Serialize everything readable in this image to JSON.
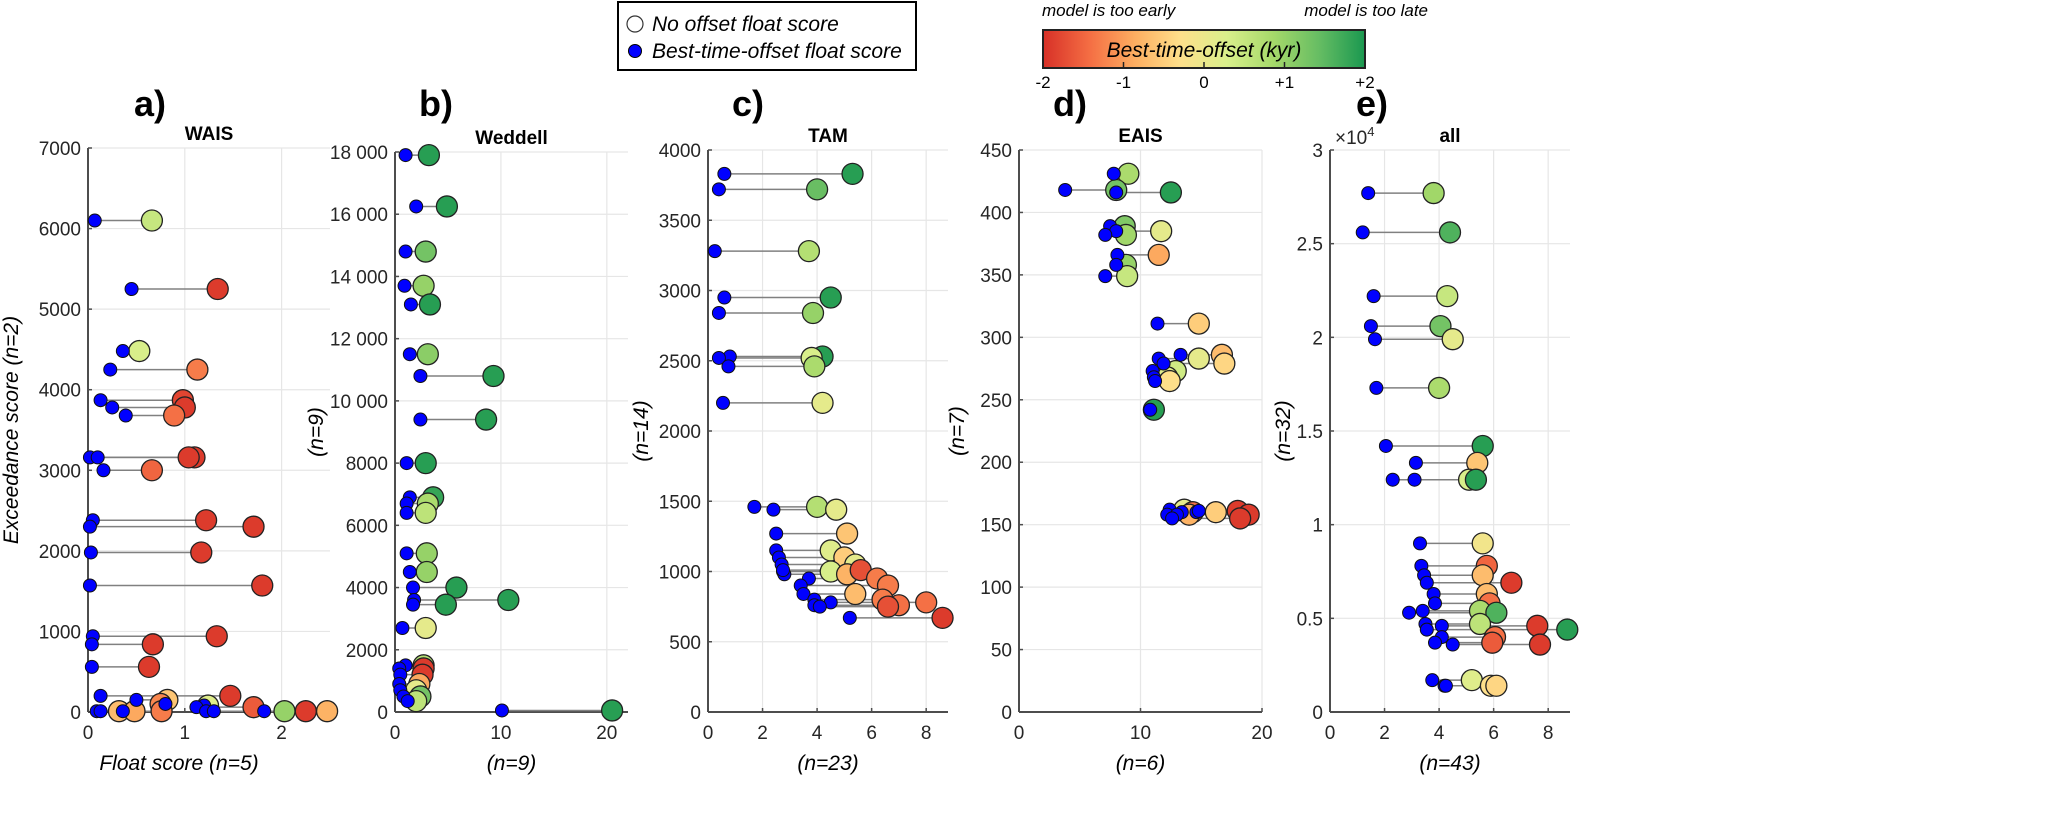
{
  "legend": {
    "items": [
      {
        "label": "No offset float score",
        "marker": "open-circle"
      },
      {
        "label": "Best-time-offset float score",
        "marker": "blue-dot"
      }
    ]
  },
  "colorbar": {
    "title": "Best-time-offset (kyr)",
    "left_note": "model is too early",
    "right_note": "model is too late",
    "ticks": [
      "-2",
      "-1",
      "0",
      "+1",
      "+2"
    ],
    "range": [
      -2,
      2
    ],
    "colors": [
      "#d73027",
      "#f46d43",
      "#fdae61",
      "#fee08b",
      "#d9ef8b",
      "#a6d96a",
      "#66bd63",
      "#1a9850"
    ]
  },
  "colors": {
    "best_offset_marker": "#0000ff",
    "connector": "#808080",
    "grid": "#e6e6e6",
    "axis": "#4d4d4d"
  },
  "chart_data": [
    {
      "type": "scatter",
      "panel": "a)",
      "title": "WAIS",
      "ylabel": "Exceedance score (n=2)",
      "xlabel": "Float score (n=5)",
      "xlim": [
        0,
        2.5
      ],
      "ylim": [
        0,
        7000
      ],
      "xticks": [
        "0",
        "1",
        "2"
      ],
      "xtick_values": [
        0,
        1,
        2
      ],
      "yticks": [
        "0",
        "1000",
        "2000",
        "3000",
        "4000",
        "5000",
        "6000",
        "7000"
      ],
      "ytick_values": [
        0,
        1000,
        2000,
        3000,
        4000,
        5000,
        6000,
        7000
      ],
      "y_multiplier": "",
      "points": [
        {
          "y": 6100,
          "best": 0.07,
          "none": 0.66,
          "offset": 0.5
        },
        {
          "y": 5250,
          "best": 0.45,
          "none": 1.34,
          "offset": -1.9
        },
        {
          "y": 4480,
          "best": 0.36,
          "none": 0.53,
          "offset": 0.3
        },
        {
          "y": 4250,
          "best": 0.23,
          "none": 1.13,
          "offset": -1.3
        },
        {
          "y": 3870,
          "best": 0.13,
          "none": 0.98,
          "offset": -1.8
        },
        {
          "y": 3780,
          "best": 0.25,
          "none": 1.0,
          "offset": -1.9
        },
        {
          "y": 3680,
          "best": 0.39,
          "none": 0.89,
          "offset": -1.4
        },
        {
          "y": 3160,
          "best": 0.02,
          "none": 1.1,
          "offset": -1.9
        },
        {
          "y": 3160,
          "best": 0.1,
          "none": 1.04,
          "offset": -1.9
        },
        {
          "y": 3000,
          "best": 0.16,
          "none": 0.66,
          "offset": -1.5
        },
        {
          "y": 2380,
          "best": 0.05,
          "none": 1.22,
          "offset": -1.9
        },
        {
          "y": 2300,
          "best": 0.02,
          "none": 1.71,
          "offset": -1.9
        },
        {
          "y": 1980,
          "best": 0.03,
          "none": 1.17,
          "offset": -1.9
        },
        {
          "y": 1570,
          "best": 0.02,
          "none": 1.8,
          "offset": -1.9
        },
        {
          "y": 940,
          "best": 0.05,
          "none": 1.33,
          "offset": -1.9
        },
        {
          "y": 840,
          "best": 0.04,
          "none": 0.67,
          "offset": -1.9
        },
        {
          "y": 560,
          "best": 0.04,
          "none": 0.63,
          "offset": -1.9
        },
        {
          "y": 200,
          "best": 0.13,
          "none": 1.47,
          "offset": -1.9
        },
        {
          "y": 150,
          "best": 0.5,
          "none": 0.82,
          "offset": -0.6
        },
        {
          "y": 80,
          "best": 1.2,
          "none": 1.24,
          "offset": 0.2
        },
        {
          "y": 100,
          "best": 0.8,
          "none": 0.75,
          "offset": -1.2
        },
        {
          "y": 60,
          "best": 1.12,
          "none": 1.71,
          "offset": -1.6
        },
        {
          "y": 10,
          "best": 0.09,
          "none": 0.32,
          "offset": -0.7
        },
        {
          "y": 10,
          "best": 0.13,
          "none": 0.48,
          "offset": -0.9
        },
        {
          "y": 10,
          "best": 0.36,
          "none": 0.76,
          "offset": -1.3
        },
        {
          "y": 10,
          "best": 1.22,
          "none": 2.03,
          "offset": 1.0
        },
        {
          "y": 10,
          "best": 1.3,
          "none": 2.25,
          "offset": -1.9
        },
        {
          "y": 10,
          "best": 1.82,
          "none": 2.47,
          "offset": -0.8
        }
      ]
    },
    {
      "type": "scatter",
      "panel": "b)",
      "title": "Weddell",
      "ylabel": "(n=9)",
      "xlabel": "(n=9)",
      "xlim": [
        0,
        22
      ],
      "ylim": [
        0,
        18000
      ],
      "xticks": [
        "0",
        "10",
        "20"
      ],
      "xtick_values": [
        0,
        10,
        20
      ],
      "yticks": [
        "0",
        "2000",
        "4000",
        "6000",
        "8000",
        "10 000",
        "12 000",
        "14 000",
        "16 000",
        "18 000"
      ],
      "ytick_values": [
        0,
        2000,
        4000,
        6000,
        8000,
        10000,
        12000,
        14000,
        16000,
        18000
      ],
      "y_multiplier": "",
      "points": [
        {
          "y": 17900,
          "best": 1.0,
          "none": 3.2,
          "offset": 1.9
        },
        {
          "y": 16250,
          "best": 2.0,
          "none": 4.9,
          "offset": 1.9
        },
        {
          "y": 14800,
          "best": 1.0,
          "none": 2.9,
          "offset": 1.3
        },
        {
          "y": 13700,
          "best": 0.9,
          "none": 2.7,
          "offset": 1.0
        },
        {
          "y": 13100,
          "best": 1.5,
          "none": 3.3,
          "offset": 1.9
        },
        {
          "y": 11500,
          "best": 1.4,
          "none": 3.1,
          "offset": 1.1
        },
        {
          "y": 10800,
          "best": 2.4,
          "none": 9.3,
          "offset": 1.9
        },
        {
          "y": 9400,
          "best": 2.4,
          "none": 8.6,
          "offset": 1.9
        },
        {
          "y": 8000,
          "best": 1.1,
          "none": 2.9,
          "offset": 1.9
        },
        {
          "y": 6900,
          "best": 1.4,
          "none": 3.6,
          "offset": 1.8
        },
        {
          "y": 6700,
          "best": 1.1,
          "none": 3.1,
          "offset": 0.8
        },
        {
          "y": 6400,
          "best": 1.1,
          "none": 2.9,
          "offset": 0.6
        },
        {
          "y": 5100,
          "best": 1.1,
          "none": 3.0,
          "offset": 1.0
        },
        {
          "y": 4500,
          "best": 1.4,
          "none": 3.0,
          "offset": 1.0
        },
        {
          "y": 4000,
          "best": 1.7,
          "none": 5.8,
          "offset": 1.9
        },
        {
          "y": 3600,
          "best": 1.8,
          "none": 10.7,
          "offset": 1.9
        },
        {
          "y": 3450,
          "best": 1.7,
          "none": 4.8,
          "offset": 1.9
        },
        {
          "y": 2700,
          "best": 0.7,
          "none": 2.9,
          "offset": 0.1
        },
        {
          "y": 1500,
          "best": 1.0,
          "none": 2.7,
          "offset": 0.7
        },
        {
          "y": 1400,
          "best": 0.4,
          "none": 2.7,
          "offset": -1.9
        },
        {
          "y": 1200,
          "best": 0.5,
          "none": 2.6,
          "offset": -1.9
        },
        {
          "y": 900,
          "best": 0.4,
          "none": 2.3,
          "offset": -0.9
        },
        {
          "y": 700,
          "best": 0.5,
          "none": 2.0,
          "offset": 0.1
        },
        {
          "y": 500,
          "best": 0.8,
          "none": 2.4,
          "offset": 1.3
        },
        {
          "y": 350,
          "best": 1.2,
          "none": 2.0,
          "offset": 0.6
        },
        {
          "y": 50,
          "best": 10.1,
          "none": 20.5,
          "offset": 1.9
        }
      ]
    },
    {
      "type": "scatter",
      "panel": "c)",
      "title": "TAM",
      "ylabel": "(n=14)",
      "xlabel": "(n=23)",
      "xlim": [
        0,
        8.8
      ],
      "ylim": [
        0,
        4000
      ],
      "xticks": [
        "0",
        "2",
        "4",
        "6",
        "8"
      ],
      "xtick_values": [
        0,
        2,
        4,
        6,
        8
      ],
      "yticks": [
        "0",
        "500",
        "1000",
        "1500",
        "2000",
        "2500",
        "3000",
        "3500",
        "4000"
      ],
      "ytick_values": [
        0,
        500,
        1000,
        1500,
        2000,
        2500,
        3000,
        3500,
        4000
      ],
      "y_multiplier": "",
      "points": [
        {
          "y": 3830,
          "best": 0.6,
          "none": 5.3,
          "offset": 1.9
        },
        {
          "y": 3720,
          "best": 0.4,
          "none": 4.0,
          "offset": 1.4
        },
        {
          "y": 3280,
          "best": 0.25,
          "none": 3.7,
          "offset": 0.7
        },
        {
          "y": 2950,
          "best": 0.6,
          "none": 4.5,
          "offset": 1.9
        },
        {
          "y": 2840,
          "best": 0.4,
          "none": 3.85,
          "offset": 1.0
        },
        {
          "y": 2530,
          "best": 0.8,
          "none": 4.2,
          "offset": 1.9
        },
        {
          "y": 2520,
          "best": 0.4,
          "none": 3.8,
          "offset": 0.3
        },
        {
          "y": 2460,
          "best": 0.75,
          "none": 3.9,
          "offset": 0.8
        },
        {
          "y": 2200,
          "best": 0.55,
          "none": 4.2,
          "offset": 0.1
        },
        {
          "y": 1460,
          "best": 1.7,
          "none": 4.0,
          "offset": 0.7
        },
        {
          "y": 1440,
          "best": 2.4,
          "none": 4.7,
          "offset": 0.1
        },
        {
          "y": 1270,
          "best": 2.5,
          "none": 5.1,
          "offset": -0.6
        },
        {
          "y": 1150,
          "best": 2.5,
          "none": 4.5,
          "offset": 0.2
        },
        {
          "y": 1100,
          "best": 2.6,
          "none": 5.0,
          "offset": -0.5
        },
        {
          "y": 1050,
          "best": 2.7,
          "none": 5.4,
          "offset": 0.1
        },
        {
          "y": 1000,
          "best": 2.75,
          "none": 4.5,
          "offset": 0.3
        },
        {
          "y": 980,
          "best": 2.8,
          "none": 5.1,
          "offset": -0.8
        },
        {
          "y": 1010,
          "best": 2.75,
          "none": 5.6,
          "offset": -1.7
        },
        {
          "y": 950,
          "best": 3.7,
          "none": 6.2,
          "offset": -1.3
        },
        {
          "y": 900,
          "best": 3.4,
          "none": 6.6,
          "offset": -1.3
        },
        {
          "y": 840,
          "best": 3.5,
          "none": 5.4,
          "offset": -0.7
        },
        {
          "y": 800,
          "best": 3.9,
          "none": 6.4,
          "offset": -1.3
        },
        {
          "y": 780,
          "best": 4.5,
          "none": 8.0,
          "offset": -1.4
        },
        {
          "y": 760,
          "best": 3.9,
          "none": 7.0,
          "offset": -1.4
        },
        {
          "y": 750,
          "best": 4.1,
          "none": 6.6,
          "offset": -1.7
        },
        {
          "y": 670,
          "best": 5.2,
          "none": 8.6,
          "offset": -1.9
        }
      ]
    },
    {
      "type": "scatter",
      "panel": "d)",
      "title": "EAIS",
      "ylabel": "(n=7)",
      "xlabel": "(n=6)",
      "xlim": [
        0,
        20
      ],
      "ylim": [
        0,
        450
      ],
      "xticks": [
        "0",
        "10",
        "20"
      ],
      "xtick_values": [
        0,
        10,
        20
      ],
      "yticks": [
        "0",
        "50",
        "100",
        "150",
        "200",
        "250",
        "300",
        "350",
        "400",
        "450"
      ],
      "ytick_values": [
        0,
        50,
        100,
        150,
        200,
        250,
        300,
        350,
        400,
        450
      ],
      "y_multiplier": "",
      "points": [
        {
          "y": 431,
          "best": 7.8,
          "none": 9.0,
          "offset": 0.8
        },
        {
          "y": 418,
          "best": 3.8,
          "none": 8.0,
          "offset": 1.3
        },
        {
          "y": 416,
          "best": 8.0,
          "none": 12.5,
          "offset": 1.9
        },
        {
          "y": 389,
          "best": 7.5,
          "none": 8.7,
          "offset": 1.2
        },
        {
          "y": 385,
          "best": 8.0,
          "none": 11.7,
          "offset": 0.1
        },
        {
          "y": 382,
          "best": 7.1,
          "none": 8.8,
          "offset": 0.9
        },
        {
          "y": 366,
          "best": 8.1,
          "none": 11.5,
          "offset": -0.9
        },
        {
          "y": 358,
          "best": 8.0,
          "none": 8.8,
          "offset": 1.0
        },
        {
          "y": 349,
          "best": 7.1,
          "none": 8.9,
          "offset": 0.5
        },
        {
          "y": 311,
          "best": 11.4,
          "none": 14.8,
          "offset": -0.5
        },
        {
          "y": 286,
          "best": 13.3,
          "none": 16.7,
          "offset": -0.7
        },
        {
          "y": 283,
          "best": 11.5,
          "none": 14.8,
          "offset": 0.1
        },
        {
          "y": 279,
          "best": 11.9,
          "none": 16.9,
          "offset": -0.4
        },
        {
          "y": 273,
          "best": 11.0,
          "none": 12.9,
          "offset": 0.4
        },
        {
          "y": 268,
          "best": 11.1,
          "none": 12.2,
          "offset": 0.2
        },
        {
          "y": 265,
          "best": 11.2,
          "none": 12.4,
          "offset": -0.3
        },
        {
          "y": 242,
          "best": 10.8,
          "none": 11.1,
          "offset": 1.9
        },
        {
          "y": 162,
          "best": 12.4,
          "none": 13.6,
          "offset": 0.1
        },
        {
          "y": 160,
          "best": 13.4,
          "none": 14.3,
          "offset": -1.4
        },
        {
          "y": 158,
          "best": 12.2,
          "none": 14.0,
          "offset": -0.8
        },
        {
          "y": 160,
          "best": 14.6,
          "none": 16.2,
          "offset": -0.5
        },
        {
          "y": 161,
          "best": 14.8,
          "none": 18.0,
          "offset": -1.9
        },
        {
          "y": 158,
          "best": 13.0,
          "none": 18.9,
          "offset": -1.9
        },
        {
          "y": 155,
          "best": 12.6,
          "none": 18.2,
          "offset": -1.9
        }
      ]
    },
    {
      "type": "scatter",
      "panel": "e)",
      "title": "all",
      "ylabel": "(n=32)",
      "xlabel": "(n=43)",
      "xlim": [
        0,
        8.8
      ],
      "ylim": [
        0,
        3
      ],
      "xticks": [
        "0",
        "2",
        "4",
        "6",
        "8"
      ],
      "xtick_values": [
        0,
        2,
        4,
        6,
        8
      ],
      "yticks": [
        "0",
        "0.5",
        "1",
        "1.5",
        "2",
        "2.5",
        "3"
      ],
      "ytick_values": [
        0,
        0.5,
        1,
        1.5,
        2,
        2.5,
        3
      ],
      "y_multiplier": "×10^4",
      "points": [
        {
          "y": 2.77,
          "best": 1.4,
          "none": 3.8,
          "offset": 0.9
        },
        {
          "y": 2.56,
          "best": 1.2,
          "none": 4.4,
          "offset": 1.6
        },
        {
          "y": 2.22,
          "best": 1.6,
          "none": 4.3,
          "offset": 0.5
        },
        {
          "y": 2.06,
          "best": 1.5,
          "none": 4.05,
          "offset": 1.3
        },
        {
          "y": 1.99,
          "best": 1.65,
          "none": 4.5,
          "offset": 0.1
        },
        {
          "y": 1.73,
          "best": 1.7,
          "none": 4.0,
          "offset": 0.8
        },
        {
          "y": 1.42,
          "best": 2.05,
          "none": 5.6,
          "offset": 1.9
        },
        {
          "y": 1.33,
          "best": 3.15,
          "none": 5.4,
          "offset": -0.6
        },
        {
          "y": 1.24,
          "best": 2.3,
          "none": 5.1,
          "offset": 0.3
        },
        {
          "y": 1.24,
          "best": 3.1,
          "none": 5.35,
          "offset": 1.9
        },
        {
          "y": 0.9,
          "best": 3.3,
          "none": 5.6,
          "offset": -0.1
        },
        {
          "y": 0.78,
          "best": 3.35,
          "none": 5.75,
          "offset": -1.5
        },
        {
          "y": 0.73,
          "best": 3.45,
          "none": 5.6,
          "offset": -0.7
        },
        {
          "y": 0.69,
          "best": 3.55,
          "none": 6.65,
          "offset": -1.9
        },
        {
          "y": 0.63,
          "best": 3.8,
          "none": 5.75,
          "offset": -0.7
        },
        {
          "y": 0.58,
          "best": 3.85,
          "none": 5.85,
          "offset": -1.4
        },
        {
          "y": 0.54,
          "best": 3.4,
          "none": 5.5,
          "offset": 0.8
        },
        {
          "y": 0.53,
          "best": 2.9,
          "none": 6.1,
          "offset": 1.6
        },
        {
          "y": 0.47,
          "best": 3.5,
          "none": 5.5,
          "offset": 0.6
        },
        {
          "y": 0.46,
          "best": 4.1,
          "none": 7.6,
          "offset": -1.9
        },
        {
          "y": 0.44,
          "best": 3.55,
          "none": 8.7,
          "offset": 1.9
        },
        {
          "y": 0.4,
          "best": 4.1,
          "none": 6.05,
          "offset": -1.4
        },
        {
          "y": 0.37,
          "best": 3.85,
          "none": 5.95,
          "offset": -1.6
        },
        {
          "y": 0.36,
          "best": 4.5,
          "none": 7.7,
          "offset": -1.9
        },
        {
          "y": 0.17,
          "best": 3.75,
          "none": 5.2,
          "offset": 0.2
        },
        {
          "y": 0.14,
          "best": 4.2,
          "none": 5.9,
          "offset": -0.3
        },
        {
          "y": 0.14,
          "best": 4.25,
          "none": 6.1,
          "offset": -0.4
        }
      ]
    }
  ]
}
